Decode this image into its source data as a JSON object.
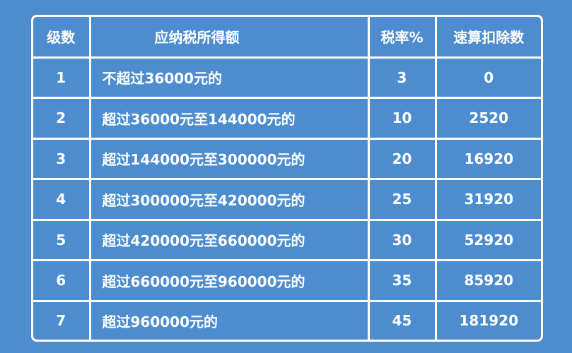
{
  "table": {
    "header": [
      "级数",
      "应纳税所得额",
      "税率%",
      "速算扣除数"
    ],
    "rows": [
      [
        1,
        "不超过36000元的",
        3,
        0
      ],
      [
        2,
        "超过36000元至144000元的",
        10,
        2520
      ],
      [
        3,
        "超过144000元至300000元的",
        20,
        16920
      ],
      [
        4,
        "超过300000元至420000元的",
        25,
        31920
      ],
      [
        5,
        "超过420000元至660000元的",
        30,
        52920
      ],
      [
        6,
        "超过660000元至960000元的",
        35,
        85920
      ],
      [
        7,
        "超过960000元的",
        45,
        181920
      ]
    ]
  }
}
